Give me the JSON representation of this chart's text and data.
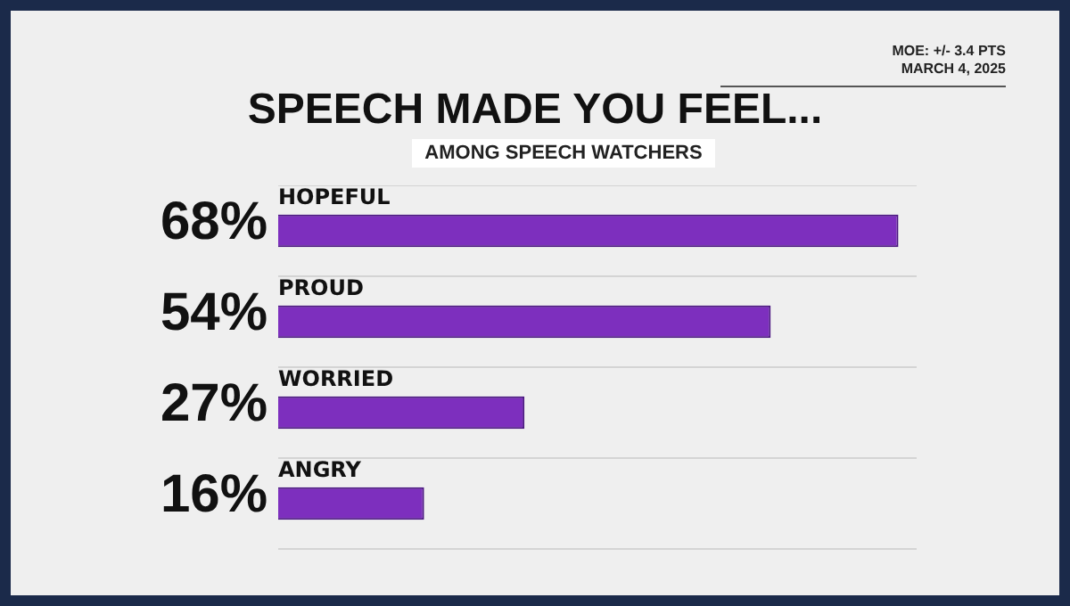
{
  "chart_data": {
    "type": "bar",
    "orientation": "horizontal",
    "title": "SPEECH MADE YOU FEEL...",
    "subtitle": "AMONG SPEECH WATCHERS",
    "annotations": [
      "MOE: +/- 3.4 PTS",
      "MARCH 4, 2025"
    ],
    "categories": [
      "HOPEFUL",
      "PROUD",
      "WORRIED",
      "ANGRY"
    ],
    "values": [
      68,
      54,
      27,
      16
    ],
    "value_labels": [
      "68%",
      "54%",
      "27%",
      "16%"
    ],
    "color": "#7d2fbe",
    "grid": "y",
    "legend": false
  }
}
